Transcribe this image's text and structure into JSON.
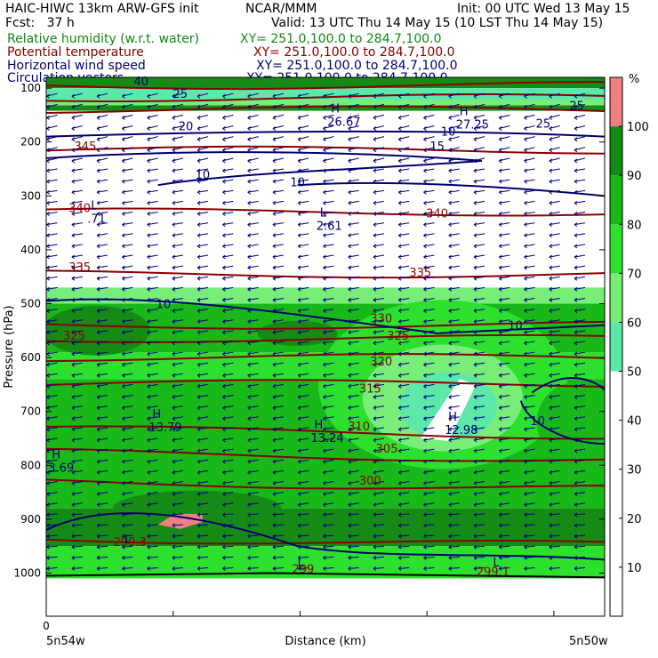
{
  "header": {
    "model": "HAIC-HIWC 13km ARW-GFS init",
    "org": "NCAR/MMM",
    "init": "Init: 00 UTC Wed 13 May 15",
    "fcst": "Fcst:   37 h",
    "valid": "Valid: 13 UTC Thu 14 May 15 (10 LST Thu 14 May 15)",
    "fields": [
      {
        "name": "Relative humidity (w.r.t. water)",
        "xy": "XY= 251.0,100.0 to 284.7,100.0",
        "color": "#118811"
      },
      {
        "name": "Potential temperature",
        "xy": "XY= 251.0,100.0 to 284.7,100.0",
        "color": "#880000"
      },
      {
        "name": "Horizontal wind speed",
        "xy": "XY= 251.0,100.0 to 284.7,100.0",
        "color": "#000077"
      },
      {
        "name": "Circulation vectors",
        "xy": "XY= 251.0,100.0 to 284.7,100.0",
        "color": "#000077"
      }
    ]
  },
  "chart_data": {
    "type": "heatmap",
    "description": "Vertical cross-section: relative humidity (shaded), potential temperature (K, contours), horizontal wind speed (contours), circulation vectors",
    "xlabel": "Distance (km)",
    "ylabel": "Pressure (hPa)",
    "x_tick_labels": [
      "0"
    ],
    "x_endpoint_labels": [
      "5n54w",
      "5n50w"
    ],
    "y_ticks": [
      100,
      200,
      300,
      400,
      500,
      600,
      700,
      800,
      900,
      1000
    ],
    "ylim": [
      1080,
      80
    ],
    "colorbar": {
      "unit": "%",
      "ticks": [
        10,
        20,
        30,
        40,
        50,
        60,
        70,
        80,
        90,
        100
      ],
      "levels": [
        {
          "range": [
            0,
            50
          ],
          "color": "#ffffff"
        },
        {
          "range": [
            50,
            60
          ],
          "color": "#5ce8a8"
        },
        {
          "range": [
            60,
            70
          ],
          "color": "#78ee78"
        },
        {
          "range": [
            70,
            80
          ],
          "color": "#2ee02e"
        },
        {
          "range": [
            80,
            90
          ],
          "color": "#18b818"
        },
        {
          "range": [
            90,
            100
          ],
          "color": "#158a15"
        },
        {
          "range": [
            100,
            110
          ],
          "color": "#f08080"
        }
      ]
    },
    "theta_labels": [
      {
        "value": "345",
        "x": 0.07,
        "p": 215
      },
      {
        "value": "340",
        "x": 0.06,
        "p": 330
      },
      {
        "value": "340",
        "x": 0.7,
        "p": 340
      },
      {
        "value": "335",
        "x": 0.06,
        "p": 440
      },
      {
        "value": "335",
        "x": 0.67,
        "p": 450
      },
      {
        "value": "330",
        "x": 0.6,
        "p": 535
      },
      {
        "value": "325",
        "x": 0.05,
        "p": 567
      },
      {
        "value": "325",
        "x": 0.63,
        "p": 567
      },
      {
        "value": "320",
        "x": 0.6,
        "p": 615
      },
      {
        "value": "315",
        "x": 0.58,
        "p": 665
      },
      {
        "value": "310",
        "x": 0.56,
        "p": 735
      },
      {
        "value": "305",
        "x": 0.61,
        "p": 776
      },
      {
        "value": "300",
        "x": 0.58,
        "p": 836
      },
      {
        "value": "299.3",
        "x": 0.15,
        "p": 950
      },
      {
        "value": "299",
        "x": 0.46,
        "p": 1000
      },
      {
        "value": "299.1",
        "x": 0.8,
        "p": 1005
      }
    ],
    "wind_labels": [
      {
        "value": "40",
        "x": 0.17,
        "p": 95
      },
      {
        "value": "25",
        "x": 0.24,
        "p": 118
      },
      {
        "value": "20",
        "x": 0.25,
        "p": 178
      },
      {
        "value": "25",
        "x": 0.95,
        "p": 140
      },
      {
        "value": "25",
        "x": 0.89,
        "p": 173
      },
      {
        "value": "10",
        "x": 0.72,
        "p": 188
      },
      {
        "value": "15",
        "x": 0.7,
        "p": 215
      },
      {
        "value": "10",
        "x": 0.28,
        "p": 268
      },
      {
        "value": "10",
        "x": 0.45,
        "p": 282
      },
      {
        "value": "10",
        "x": 0.21,
        "p": 508
      },
      {
        "value": "10",
        "x": 0.84,
        "p": 548
      },
      {
        "value": "10",
        "x": 0.88,
        "p": 725
      }
    ],
    "extrema": [
      {
        "type": "H",
        "value": "26.67",
        "x": 0.51,
        "p": 145
      },
      {
        "type": "H",
        "value": "27.25",
        "x": 0.74,
        "p": 150
      },
      {
        "type": "L",
        "value": "2.61",
        "x": 0.49,
        "p": 338
      },
      {
        "type": "L",
        "value": ".71",
        "x": 0.08,
        "p": 325
      },
      {
        "type": "H",
        "value": "13.79",
        "x": 0.19,
        "p": 712
      },
      {
        "type": "H",
        "value": "13.24",
        "x": 0.48,
        "p": 732
      },
      {
        "type": "H",
        "value": "12.98",
        "x": 0.72,
        "p": 717
      },
      {
        "type": "H",
        "value": "3.69",
        "x": 0.01,
        "p": 787
      },
      {
        "type": "L",
        "value": "",
        "x": 0.14,
        "p": 945
      },
      {
        "type": "L",
        "value": "",
        "x": 0.45,
        "p": 988
      },
      {
        "type": "L",
        "value": "",
        "x": 0.8,
        "p": 988
      }
    ],
    "grid": false,
    "legend": "header-top"
  },
  "colors": {
    "theta": "#8b0000",
    "wind": "#00006e",
    "vector": "#000088",
    "axis": "#000000"
  }
}
